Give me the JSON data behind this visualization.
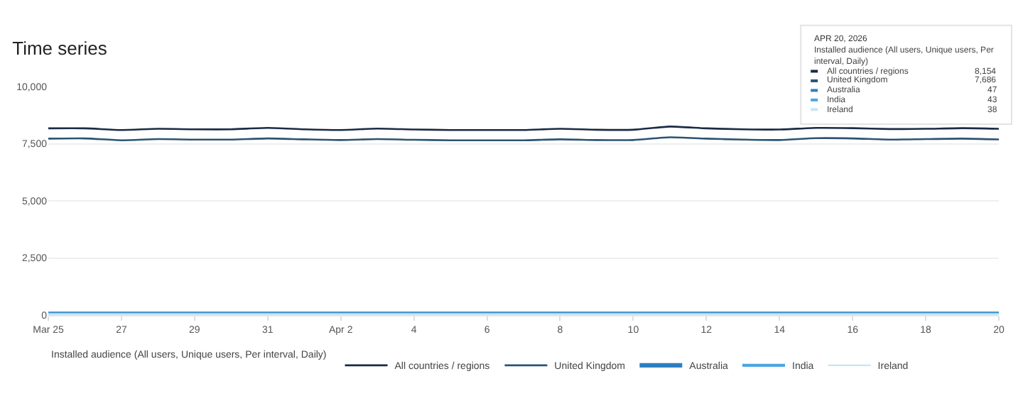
{
  "chart_data": {
    "type": "line",
    "title": "Time series",
    "legend_title": "Installed audience (All users, Unique users, Per interval, Daily)",
    "x": [
      "2026-03-25",
      "2026-03-26",
      "2026-03-27",
      "2026-03-28",
      "2026-03-29",
      "2026-03-30",
      "2026-03-31",
      "2026-04-01",
      "2026-04-02",
      "2026-04-03",
      "2026-04-04",
      "2026-04-05",
      "2026-04-06",
      "2026-04-07",
      "2026-04-08",
      "2026-04-09",
      "2026-04-10",
      "2026-04-11",
      "2026-04-12",
      "2026-04-13",
      "2026-04-14",
      "2026-04-15",
      "2026-04-16",
      "2026-04-17",
      "2026-04-18",
      "2026-04-19",
      "2026-04-20"
    ],
    "series": [
      {
        "name": "All countries / regions",
        "color": "#1b2a44",
        "values": [
          8170,
          8170,
          8100,
          8150,
          8130,
          8130,
          8190,
          8130,
          8100,
          8160,
          8120,
          8100,
          8100,
          8100,
          8150,
          8110,
          8110,
          8250,
          8170,
          8130,
          8120,
          8190,
          8180,
          8140,
          8150,
          8180,
          8154
        ]
      },
      {
        "name": "United Kingdom",
        "color": "#2b5373",
        "values": [
          7720,
          7730,
          7650,
          7700,
          7680,
          7680,
          7730,
          7690,
          7660,
          7700,
          7670,
          7650,
          7650,
          7650,
          7690,
          7660,
          7660,
          7780,
          7720,
          7680,
          7660,
          7740,
          7730,
          7680,
          7700,
          7720,
          7686
        ]
      },
      {
        "name": "Australia",
        "color": "#2e7fc0",
        "values": [
          47,
          47,
          47,
          47,
          47,
          47,
          47,
          47,
          47,
          47,
          47,
          47,
          47,
          47,
          47,
          47,
          47,
          47,
          47,
          47,
          47,
          47,
          47,
          47,
          47,
          47,
          47
        ]
      },
      {
        "name": "India",
        "color": "#4da6e0",
        "values": [
          43,
          43,
          43,
          43,
          43,
          43,
          43,
          43,
          43,
          43,
          43,
          43,
          43,
          43,
          43,
          43,
          43,
          43,
          43,
          43,
          43,
          43,
          43,
          43,
          43,
          43,
          43
        ]
      },
      {
        "name": "Ireland",
        "color": "#c7e4f4",
        "values": [
          38,
          38,
          38,
          38,
          38,
          38,
          38,
          38,
          38,
          38,
          38,
          38,
          38,
          38,
          38,
          38,
          38,
          38,
          38,
          38,
          38,
          38,
          38,
          38,
          38,
          38,
          38
        ]
      }
    ],
    "xlim": [
      "2026-03-25",
      "2026-04-20"
    ],
    "xticks": [
      {
        "value": "2026-03-25",
        "label": "Mar 25"
      },
      {
        "value": "2026-03-27",
        "label": "27"
      },
      {
        "value": "2026-03-29",
        "label": "29"
      },
      {
        "value": "2026-03-31",
        "label": "31"
      },
      {
        "value": "2026-04-02",
        "label": "Apr 2"
      },
      {
        "value": "2026-04-04",
        "label": "4"
      },
      {
        "value": "2026-04-06",
        "label": "6"
      },
      {
        "value": "2026-04-08",
        "label": "8"
      },
      {
        "value": "2026-04-10",
        "label": "10"
      },
      {
        "value": "2026-04-12",
        "label": "12"
      },
      {
        "value": "2026-04-14",
        "label": "14"
      },
      {
        "value": "2026-04-16",
        "label": "16"
      },
      {
        "value": "2026-04-18",
        "label": "18"
      },
      {
        "value": "2026-04-20",
        "label": "20"
      }
    ],
    "ylim": [
      0,
      10000
    ],
    "yticks": [
      {
        "value": 0,
        "label": "0"
      },
      {
        "value": 2500,
        "label": "2,500"
      },
      {
        "value": 5000,
        "label": "5,000"
      },
      {
        "value": 7500,
        "label": "7,500"
      },
      {
        "value": 10000,
        "label": "10,000"
      }
    ],
    "grid": "y",
    "legend": "bottom",
    "line_style": "solid",
    "annotations": [
      "APR 20, 2026",
      "Installed audience (All users, Unique users, Per interval, Daily)",
      "8,154",
      "7,686",
      "47",
      "43",
      "38"
    ]
  }
}
